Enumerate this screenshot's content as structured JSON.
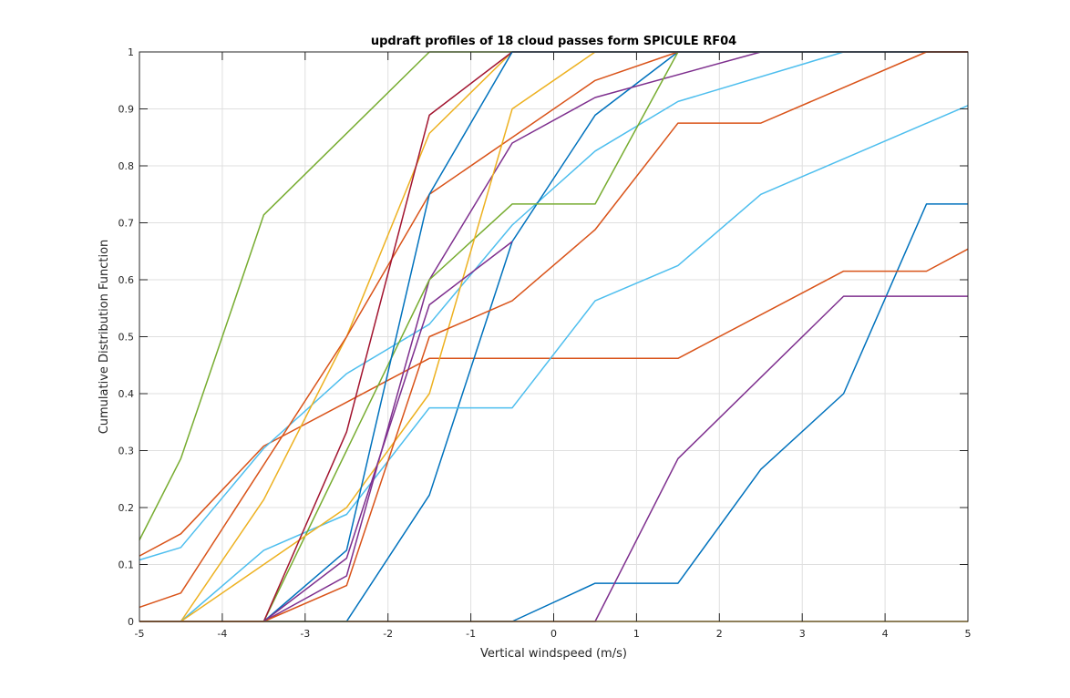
{
  "chart_data": {
    "type": "line",
    "title": "updraft profiles of 18 cloud passes form SPICULE RF04",
    "xlabel": "Vertical windspeed (m/s)",
    "ylabel": "Cumulative Distribution Function",
    "xlim": [
      -5,
      5
    ],
    "ylim": [
      0,
      1
    ],
    "grid": true,
    "xticks": [
      "-5",
      "-4",
      "-3",
      "-2",
      "-1",
      "0",
      "1",
      "2",
      "3",
      "4",
      "5"
    ],
    "yticks": [
      "0",
      "0.1",
      "0.2",
      "0.3",
      "0.4",
      "0.5",
      "0.6",
      "0.7",
      "0.8",
      "0.9",
      "1"
    ],
    "series": [
      {
        "color": "#0072BD",
        "points": [
          [
            -5,
            0
          ],
          [
            -0.5,
            0
          ],
          [
            0.5,
            0.067
          ],
          [
            1.5,
            0.067
          ],
          [
            2.5,
            0.267
          ],
          [
            3.5,
            0.4
          ],
          [
            4.5,
            0.733
          ],
          [
            5,
            0.733
          ]
        ]
      },
      {
        "color": "#D95319",
        "points": [
          [
            -5,
            0.115
          ],
          [
            -4.5,
            0.154
          ],
          [
            -3.5,
            0.308
          ],
          [
            -1.5,
            0.462
          ],
          [
            1.5,
            0.462
          ],
          [
            3.5,
            0.615
          ],
          [
            4.5,
            0.615
          ],
          [
            5,
            0.654
          ]
        ]
      },
      {
        "color": "#4DBEEE",
        "points": [
          [
            -5,
            0.108
          ],
          [
            -4.5,
            0.13
          ],
          [
            -3.5,
            0.304
          ],
          [
            -2.5,
            0.435
          ],
          [
            -1.5,
            0.522
          ],
          [
            -0.5,
            0.696
          ],
          [
            0.5,
            0.826
          ],
          [
            1.5,
            0.913
          ],
          [
            3.5,
            1
          ],
          [
            5,
            1
          ]
        ]
      },
      {
        "color": "#7E2F8E",
        "points": [
          [
            -5,
            0
          ],
          [
            0.5,
            0
          ],
          [
            1.5,
            0.286
          ],
          [
            3.5,
            0.571
          ],
          [
            5,
            0.571
          ]
        ]
      },
      {
        "color": "#77AC30",
        "points": [
          [
            -5,
            0.143
          ],
          [
            -4.5,
            0.286
          ],
          [
            -3.5,
            0.714
          ],
          [
            -1.5,
            1
          ],
          [
            5,
            1
          ]
        ]
      },
      {
        "color": "#EDB120",
        "points": [
          [
            -5,
            0
          ],
          [
            -4.5,
            0
          ],
          [
            -3.5,
            0.214
          ],
          [
            -2.5,
            0.5
          ],
          [
            -1.5,
            0.857
          ],
          [
            -0.5,
            1
          ],
          [
            5,
            1
          ]
        ]
      },
      {
        "color": "#0072BD",
        "points": [
          [
            -5,
            0
          ],
          [
            -2.5,
            0
          ],
          [
            -1.5,
            0.222
          ],
          [
            -0.5,
            0.667
          ],
          [
            0.5,
            0.889
          ],
          [
            1.5,
            1
          ],
          [
            5,
            1
          ]
        ]
      },
      {
        "color": "#D95319",
        "points": [
          [
            -5,
            0.025
          ],
          [
            -4.5,
            0.05
          ],
          [
            -2.5,
            0.5
          ],
          [
            -1.5,
            0.75
          ],
          [
            0.5,
            0.95
          ],
          [
            1.5,
            1
          ],
          [
            5,
            1
          ]
        ]
      },
      {
        "color": "#4DBEEE",
        "points": [
          [
            -5,
            0
          ],
          [
            -4.5,
            0
          ],
          [
            -3.5,
            0.125
          ],
          [
            -2.5,
            0.188
          ],
          [
            -1.5,
            0.375
          ],
          [
            -0.5,
            0.375
          ],
          [
            0.5,
            0.563
          ],
          [
            1.5,
            0.625
          ],
          [
            2.5,
            0.75
          ],
          [
            5,
            0.906
          ]
        ]
      },
      {
        "color": "#7E2F8E",
        "points": [
          [
            -5,
            0
          ],
          [
            -3.5,
            0
          ],
          [
            -2.5,
            0.08
          ],
          [
            -1.5,
            0.6
          ],
          [
            -0.5,
            0.84
          ],
          [
            0.5,
            0.92
          ],
          [
            2.5,
            1
          ],
          [
            5,
            1
          ]
        ]
      },
      {
        "color": "#77AC30",
        "points": [
          [
            -5,
            0
          ],
          [
            -3.5,
            0
          ],
          [
            -1.5,
            0.6
          ],
          [
            -0.5,
            0.733
          ],
          [
            0.5,
            0.733
          ],
          [
            1.5,
            1
          ],
          [
            5,
            1
          ]
        ]
      },
      {
        "color": "#EDB120",
        "points": [
          [
            -5,
            0
          ],
          [
            -4.5,
            0
          ],
          [
            -2.5,
            0.2
          ],
          [
            -1.5,
            0.4
          ],
          [
            -0.5,
            0.9
          ],
          [
            0.5,
            1
          ],
          [
            5,
            1
          ]
        ]
      },
      {
        "color": "#A2142F",
        "points": [
          [
            -5,
            0
          ],
          [
            -3.5,
            0
          ],
          [
            -2.5,
            0.333
          ],
          [
            -1.5,
            0.889
          ],
          [
            -0.5,
            1
          ],
          [
            5,
            1
          ]
        ]
      },
      {
        "color": "#0072BD",
        "points": [
          [
            -5,
            0
          ],
          [
            -3.5,
            0
          ],
          [
            -2.5,
            0.125
          ],
          [
            -1.5,
            0.75
          ],
          [
            -0.5,
            1
          ],
          [
            5,
            1
          ]
        ]
      },
      {
        "color": "#D95319",
        "points": [
          [
            -5,
            0
          ],
          [
            -3.5,
            0
          ],
          [
            -2.5,
            0.063
          ],
          [
            -1.5,
            0.5
          ],
          [
            -0.5,
            0.563
          ],
          [
            0.5,
            0.688
          ],
          [
            1.5,
            0.875
          ],
          [
            2.5,
            0.875
          ],
          [
            4.5,
            1
          ],
          [
            5,
            1
          ]
        ]
      },
      {
        "color": "#7E2F8E",
        "points": [
          [
            -5,
            0
          ],
          [
            -3.5,
            0
          ],
          [
            -2.5,
            0.111
          ],
          [
            -1.5,
            0.556
          ],
          [
            -0.5,
            0.667
          ]
        ]
      },
      {
        "color": "#A2142F",
        "points": [
          [
            -0.5,
            1
          ],
          [
            -0.5,
            1
          ]
        ]
      },
      {
        "color": "#EDB120",
        "points": [
          [
            -5,
            0
          ],
          [
            5,
            0
          ]
        ]
      }
    ]
  }
}
